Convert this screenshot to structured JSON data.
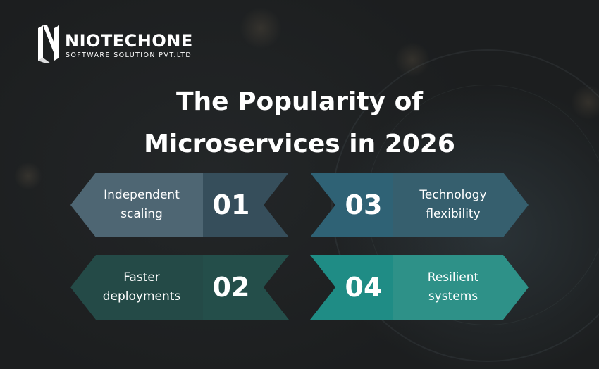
{
  "brand": {
    "name": "NIOTECHONE",
    "tagline": "SOFTWARE SOLUTION PVT.LTD"
  },
  "heading": {
    "line1": "The Popularity of",
    "line2": "Microservices in 2026"
  },
  "cards": [
    {
      "number": "01",
      "label_line1": "Independent",
      "label_line2": "scaling",
      "label_color": "#4e6673",
      "number_color": "#364e5b"
    },
    {
      "number": "02",
      "label_line1": "Faster",
      "label_line2": "deployments",
      "label_color": "#244a47",
      "number_color": "#244e4a"
    },
    {
      "number": "03",
      "label_line1": "Technology",
      "label_line2": "flexibility",
      "label_color": "#365f6e",
      "number_color": "#2f6275"
    },
    {
      "number": "04",
      "label_line1": "Resilient",
      "label_line2": "systems",
      "label_color": "#2e9188",
      "number_color": "#1f8c85"
    }
  ]
}
